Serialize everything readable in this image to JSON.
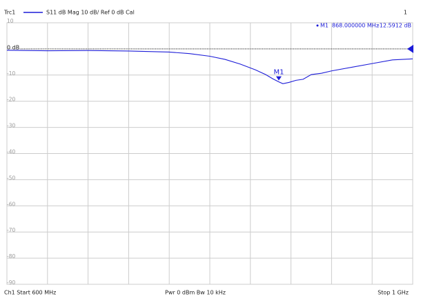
{
  "chart_data": {
    "type": "line",
    "trace_name": "Trc1",
    "trace_info": "S11  dB Mag  10 dB/ Ref 0 dB  Cal",
    "channel_number": "1",
    "footer_left": "Ch1  Start 600 MHz",
    "footer_center": "Pwr  0 dBm  Bw  10 kHz",
    "footer_right": "Stop  1 GHz",
    "x": [
      600,
      640,
      680,
      720,
      760,
      780,
      800,
      815,
      830,
      845,
      855,
      862,
      868,
      872,
      878,
      885,
      892,
      900,
      910,
      920,
      940,
      960,
      980,
      1000
    ],
    "series": [
      {
        "name": "S11",
        "color": "#1c1cd8",
        "values": [
          -0.5,
          -0.7,
          -0.6,
          -0.8,
          -1.2,
          -1.8,
          -2.8,
          -4.0,
          -5.8,
          -8.0,
          -9.8,
          -11.4,
          -12.5912,
          -13.3,
          -12.8,
          -12.0,
          -11.6,
          -9.8,
          -9.3,
          -8.4,
          -7.0,
          -5.6,
          -4.2,
          -3.8
        ]
      }
    ],
    "xlim": [
      600,
      1000
    ],
    "x_divisions": 10,
    "ylim": [
      -90,
      10
    ],
    "yticks": [
      10,
      {
        "value": 0,
        "label": "0 dB"
      },
      -10,
      -20,
      -30,
      -40,
      -50,
      -60,
      -70,
      -80,
      -90
    ],
    "grid": true,
    "ref_level": 0,
    "marker": {
      "name": "M1",
      "x": 868,
      "y": -12.5912,
      "x_label": "868.000000  MHz",
      "y_label": "-12.5912  dB"
    }
  }
}
